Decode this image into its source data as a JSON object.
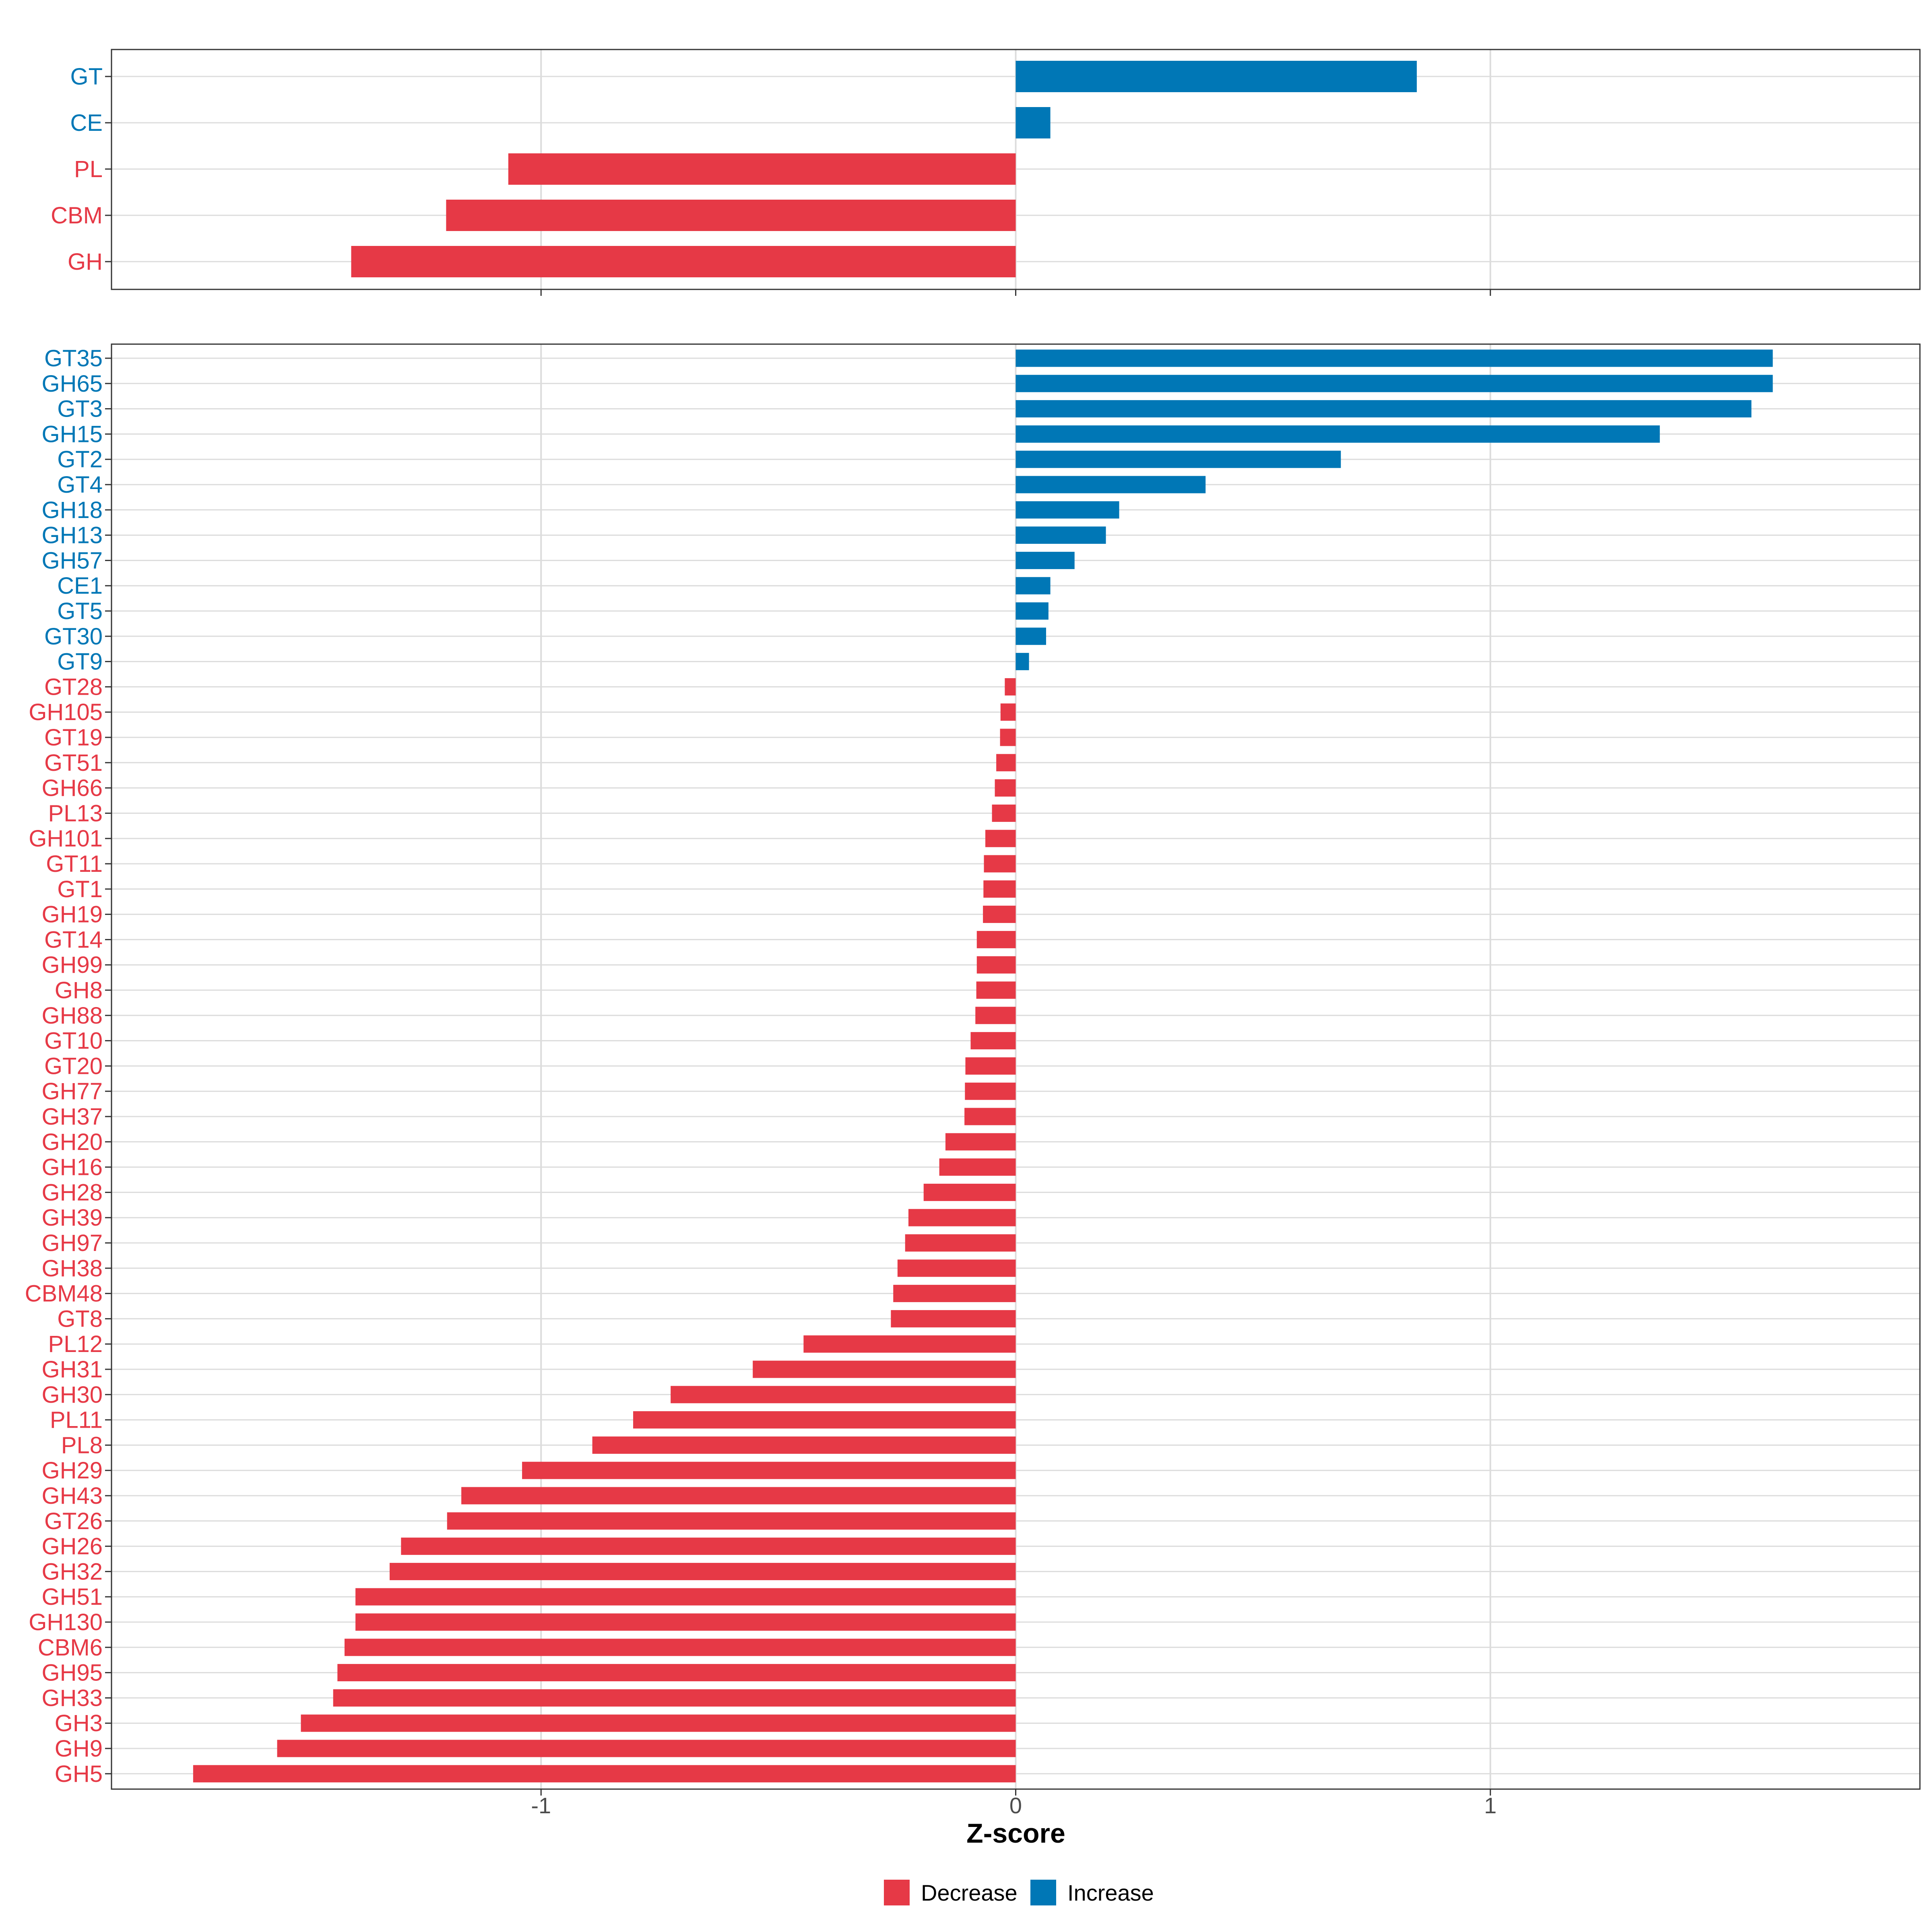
{
  "chart_data": [
    {
      "type": "bar",
      "orientation": "horizontal",
      "panel": "top",
      "categories": [
        "GT",
        "CE",
        "PL",
        "CBM",
        "GH"
      ],
      "values": [
        0.845,
        0.073,
        -1.069,
        -1.2,
        -1.4
      ],
      "xlim": [
        -1.905,
        1.905
      ],
      "xticks": [
        -1,
        0,
        1
      ],
      "grid": true
    },
    {
      "type": "bar",
      "orientation": "horizontal",
      "panel": "bottom",
      "categories": [
        "GT35",
        "GH65",
        "GT3",
        "GH15",
        "GT2",
        "GT4",
        "GH18",
        "GH13",
        "GH57",
        "CE1",
        "GT5",
        "GT30",
        "GT9",
        "GT28",
        "GH105",
        "GT19",
        "GT51",
        "GH66",
        "PL13",
        "GH101",
        "GT11",
        "GT1",
        "GH19",
        "GT14",
        "GH99",
        "GH8",
        "GH88",
        "GT10",
        "GT20",
        "GH77",
        "GH37",
        "GH20",
        "GH16",
        "GH28",
        "GH39",
        "GH97",
        "GH38",
        "CBM48",
        "GT8",
        "PL12",
        "GH31",
        "GH30",
        "PL11",
        "PL8",
        "GH29",
        "GH43",
        "GT26",
        "GH26",
        "GH32",
        "GH51",
        "GH130",
        "CBM6",
        "GH95",
        "GH33",
        "GH3",
        "GH9",
        "GH5"
      ],
      "values": [
        1.595,
        1.595,
        1.55,
        1.357,
        0.685,
        0.4,
        0.218,
        0.19,
        0.124,
        0.073,
        0.069,
        0.064,
        0.028,
        -0.023,
        -0.032,
        -0.033,
        -0.041,
        -0.044,
        -0.05,
        -0.064,
        -0.067,
        -0.068,
        -0.069,
        -0.082,
        -0.082,
        -0.083,
        -0.085,
        -0.095,
        -0.106,
        -0.107,
        -0.108,
        -0.148,
        -0.161,
        -0.194,
        -0.226,
        -0.233,
        -0.249,
        -0.258,
        -0.263,
        -0.447,
        -0.554,
        -0.727,
        -0.806,
        -0.892,
        -1.04,
        -1.168,
        -1.198,
        -1.295,
        -1.319,
        -1.391,
        -1.391,
        -1.414,
        -1.429,
        -1.438,
        -1.506,
        -1.556,
        -1.733
      ],
      "xlim": [
        -1.905,
        1.905
      ],
      "xticks": [
        -1,
        0,
        1
      ],
      "xtick_labels": [
        "-1",
        "0",
        "1"
      ],
      "xlabel": "Z-score",
      "grid": true
    }
  ],
  "legend": {
    "placement": "bottom",
    "items": [
      {
        "label": "Decrease",
        "color": "#E63946"
      },
      {
        "label": "Increase",
        "color": "#0077B6"
      }
    ]
  },
  "colors": {
    "decrease": "#E63946",
    "increase": "#0077B6",
    "grid": "#DCDCDC",
    "panel_border": "#333333"
  }
}
